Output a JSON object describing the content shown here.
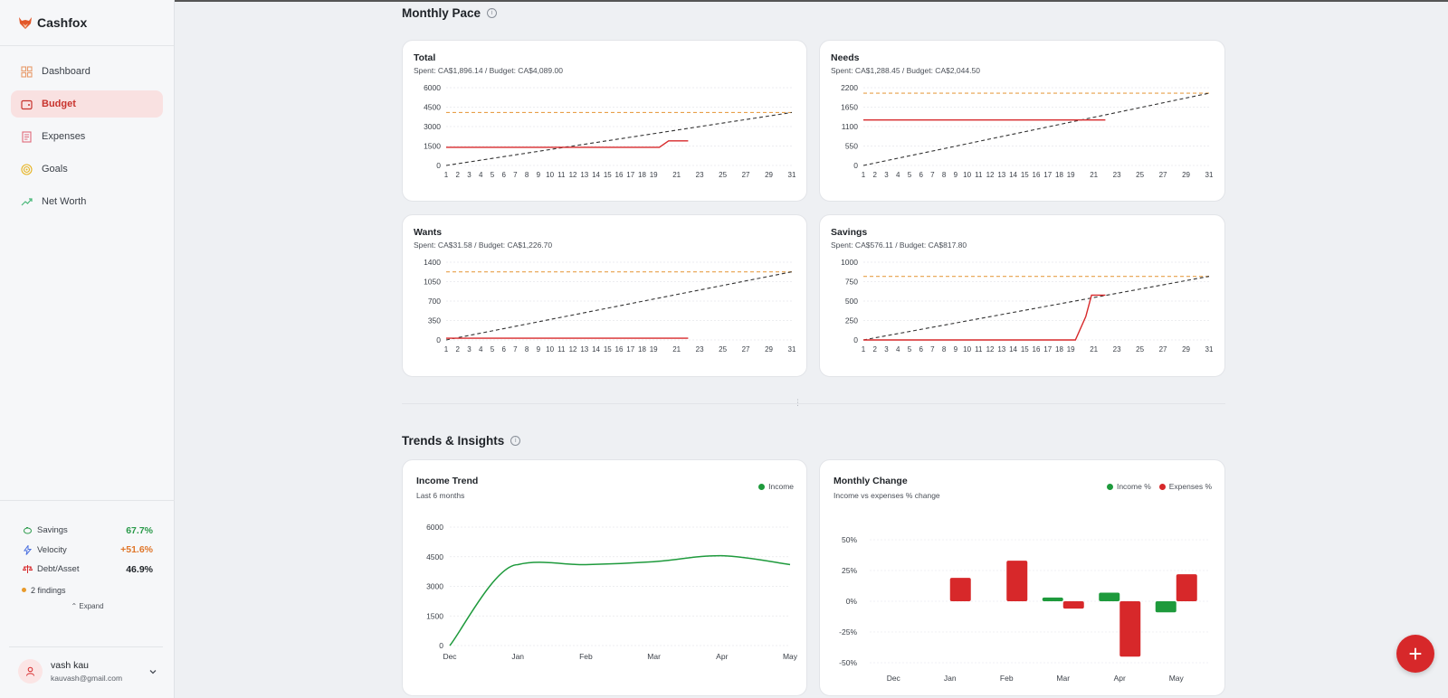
{
  "app": {
    "name": "Cashfox"
  },
  "sidebar": {
    "items": [
      {
        "label": "Dashboard",
        "icon": "dashboard-icon",
        "active": false
      },
      {
        "label": "Budget",
        "icon": "wallet-icon",
        "active": true
      },
      {
        "label": "Expenses",
        "icon": "receipt-icon",
        "active": false
      },
      {
        "label": "Goals",
        "icon": "target-icon",
        "active": false
      },
      {
        "label": "Net Worth",
        "icon": "trending-up-icon",
        "active": false
      }
    ],
    "stats": [
      {
        "label": "Savings",
        "value": "67.7%",
        "color": "#2a9a4a",
        "icon": "piggy-bank-icon"
      },
      {
        "label": "Velocity",
        "value": "+51.6%",
        "color": "#e0762a",
        "icon": "lightning-icon"
      },
      {
        "label": "Debt/Asset",
        "value": "46.9%",
        "color": "#1f2328",
        "icon": "scale-icon"
      }
    ],
    "findings": "2 findings",
    "expand": "Expand"
  },
  "user": {
    "name": "vash kau",
    "email": "kauvash@gmail.com"
  },
  "sections": {
    "monthly_pace": "Monthly Pace",
    "trends": "Trends & Insights"
  },
  "colors": {
    "accent": "#d7282a",
    "budget_line": "#e8a04a",
    "pace_line": "#333333",
    "income": "#1e9a3c",
    "expenses": "#d7282a"
  },
  "chart_data": [
    {
      "type": "line",
      "title": "Total",
      "subtitle": "Spent: CA$1,896.14 / Budget: CA$4,089.00",
      "x_ticks": [
        1,
        2,
        3,
        4,
        5,
        6,
        7,
        8,
        9,
        10,
        11,
        12,
        13,
        14,
        15,
        16,
        17,
        18,
        19,
        21,
        23,
        25,
        27,
        29,
        31
      ],
      "y_ticks": [
        0,
        1500,
        3000,
        4500,
        6000
      ],
      "ylim": [
        0,
        6000
      ],
      "budget": 4089,
      "pace": {
        "from": [
          1,
          0
        ],
        "to": [
          31,
          4089
        ]
      },
      "spent": [
        [
          1,
          1400
        ],
        [
          19.5,
          1400
        ],
        [
          20.3,
          1900
        ],
        [
          22,
          1900
        ]
      ]
    },
    {
      "type": "line",
      "title": "Needs",
      "subtitle": "Spent: CA$1,288.45 / Budget: CA$2,044.50",
      "x_ticks": [
        1,
        2,
        3,
        4,
        5,
        6,
        7,
        8,
        9,
        10,
        11,
        12,
        13,
        14,
        15,
        16,
        17,
        18,
        19,
        21,
        23,
        25,
        27,
        29,
        31
      ],
      "y_ticks": [
        0,
        550,
        1100,
        1650,
        2200
      ],
      "ylim": [
        0,
        2200
      ],
      "budget": 2044.5,
      "pace": {
        "from": [
          1,
          0
        ],
        "to": [
          31,
          2044.5
        ]
      },
      "spent": [
        [
          1,
          1288
        ],
        [
          22,
          1288
        ]
      ]
    },
    {
      "type": "line",
      "title": "Wants",
      "subtitle": "Spent: CA$31.58 / Budget: CA$1,226.70",
      "x_ticks": [
        1,
        2,
        3,
        4,
        5,
        6,
        7,
        8,
        9,
        10,
        11,
        12,
        13,
        14,
        15,
        16,
        17,
        18,
        19,
        21,
        23,
        25,
        27,
        29,
        31
      ],
      "y_ticks": [
        0,
        350,
        700,
        1050,
        1400
      ],
      "ylim": [
        0,
        1400
      ],
      "budget": 1226.7,
      "pace": {
        "from": [
          1,
          0
        ],
        "to": [
          31,
          1226.7
        ]
      },
      "spent": [
        [
          1,
          31
        ],
        [
          22,
          31
        ]
      ]
    },
    {
      "type": "line",
      "title": "Savings",
      "subtitle": "Spent: CA$576.11 / Budget: CA$817.80",
      "x_ticks": [
        1,
        2,
        3,
        4,
        5,
        6,
        7,
        8,
        9,
        10,
        11,
        12,
        13,
        14,
        15,
        16,
        17,
        18,
        19,
        21,
        23,
        25,
        27,
        29,
        31
      ],
      "y_ticks": [
        0,
        250,
        500,
        750,
        1000
      ],
      "ylim": [
        0,
        1000
      ],
      "budget": 817.8,
      "pace": {
        "from": [
          1,
          0
        ],
        "to": [
          31,
          817.8
        ]
      },
      "spent": [
        [
          1,
          0
        ],
        [
          19.4,
          0
        ],
        [
          20.3,
          300
        ],
        [
          20.8,
          576
        ],
        [
          22,
          576
        ]
      ]
    },
    {
      "type": "line",
      "title": "Income Trend",
      "subtitle": "Last 6 months",
      "legend": [
        "Income"
      ],
      "categories": [
        "Dec",
        "Jan",
        "Feb",
        "Mar",
        "Apr",
        "May"
      ],
      "y_ticks": [
        0,
        1500,
        3000,
        4500,
        6000
      ],
      "ylim": [
        0,
        6000
      ],
      "series": [
        {
          "name": "Income",
          "values": [
            0,
            4100,
            4100,
            4250,
            4550,
            4100
          ]
        }
      ]
    },
    {
      "type": "bar",
      "title": "Monthly Change",
      "subtitle": "Income vs expenses % change",
      "legend": [
        "Income %",
        "Expenses %"
      ],
      "categories": [
        "Dec",
        "Jan",
        "Feb",
        "Mar",
        "Apr",
        "May"
      ],
      "y_ticks": [
        "50%",
        "25%",
        "0%",
        "-25%",
        "-50%"
      ],
      "ylim": [
        -50,
        50
      ],
      "series": [
        {
          "name": "Income %",
          "values": [
            null,
            0,
            0,
            3,
            7,
            -9
          ]
        },
        {
          "name": "Expenses %",
          "values": [
            null,
            19,
            33,
            -6,
            -45,
            22
          ]
        }
      ]
    }
  ]
}
